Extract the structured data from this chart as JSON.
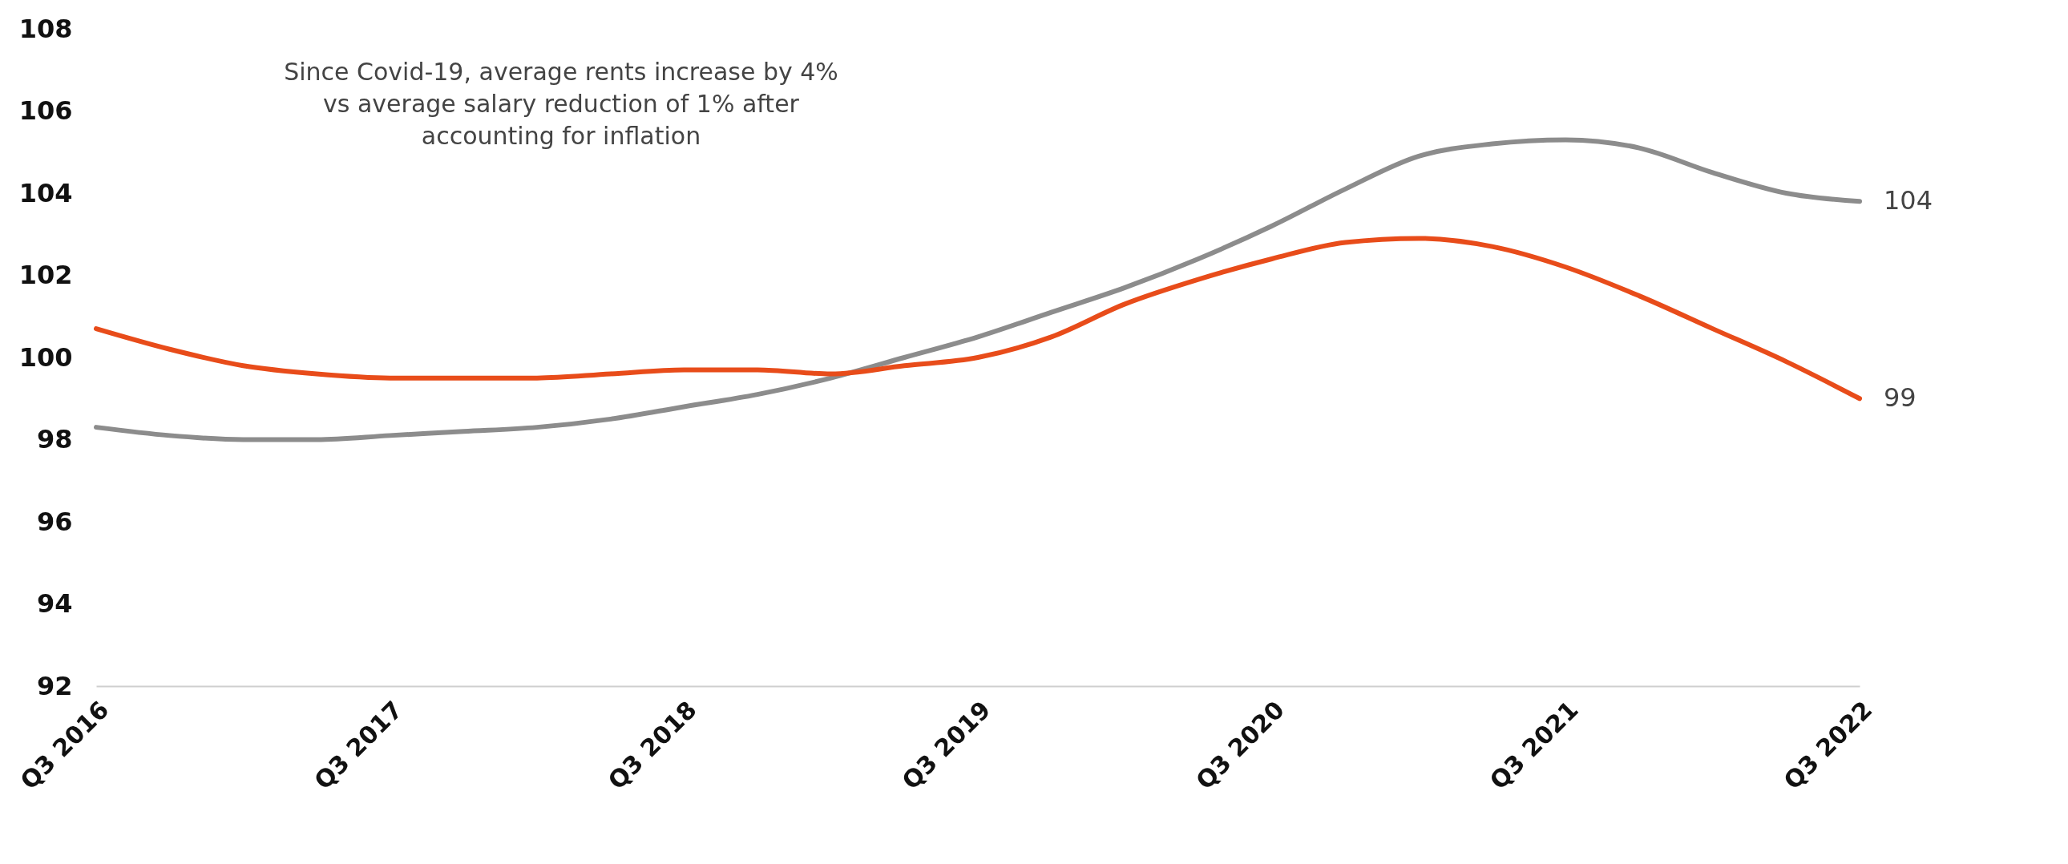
{
  "chart_data": {
    "type": "line",
    "categories": [
      "Q3 2016",
      null,
      null,
      null,
      "Q3 2017",
      null,
      null,
      null,
      "Q3 2018",
      null,
      null,
      null,
      "Q3 2019",
      null,
      null,
      null,
      "Q3 2020",
      null,
      null,
      null,
      "Q3 2021",
      null,
      null,
      null,
      "Q3 2022"
    ],
    "series": [
      {
        "color": "#8c8c8c",
        "values": [
          98.3,
          98.1,
          98.0,
          98.0,
          98.1,
          98.2,
          98.3,
          98.5,
          98.8,
          99.1,
          99.5,
          100.0,
          100.5,
          101.1,
          101.7,
          102.4,
          103.2,
          104.1,
          104.9,
          105.2,
          105.3,
          105.1,
          104.5,
          104.0,
          103.8
        ],
        "value_labels": [
          null,
          null,
          null,
          null,
          null,
          null,
          null,
          null,
          null,
          null,
          null,
          null,
          null,
          null,
          null,
          null,
          null,
          null,
          null,
          null,
          null,
          null,
          null,
          null,
          "104"
        ]
      },
      {
        "color": "#e84c1a",
        "values": [
          100.7,
          100.2,
          99.8,
          99.6,
          99.5,
          99.5,
          99.5,
          99.6,
          99.7,
          99.7,
          99.6,
          99.8,
          100.0,
          100.5,
          101.3,
          101.9,
          102.4,
          102.8,
          102.9,
          102.7,
          102.2,
          101.5,
          100.7,
          99.9,
          99.0
        ],
        "value_labels": [
          null,
          null,
          null,
          null,
          null,
          null,
          null,
          null,
          null,
          null,
          null,
          null,
          null,
          null,
          null,
          null,
          null,
          null,
          null,
          null,
          null,
          null,
          null,
          null,
          "99"
        ]
      }
    ],
    "ylim": [
      92,
      108
    ],
    "yticks": [
      92,
      94,
      96,
      98,
      100,
      102,
      104,
      106,
      108
    ],
    "grid": false,
    "legend": false,
    "annotations": [
      "Since Covid-19, average rents increase by 4%\nvs average salary reduction of 1% after\naccounting for inflation"
    ]
  }
}
